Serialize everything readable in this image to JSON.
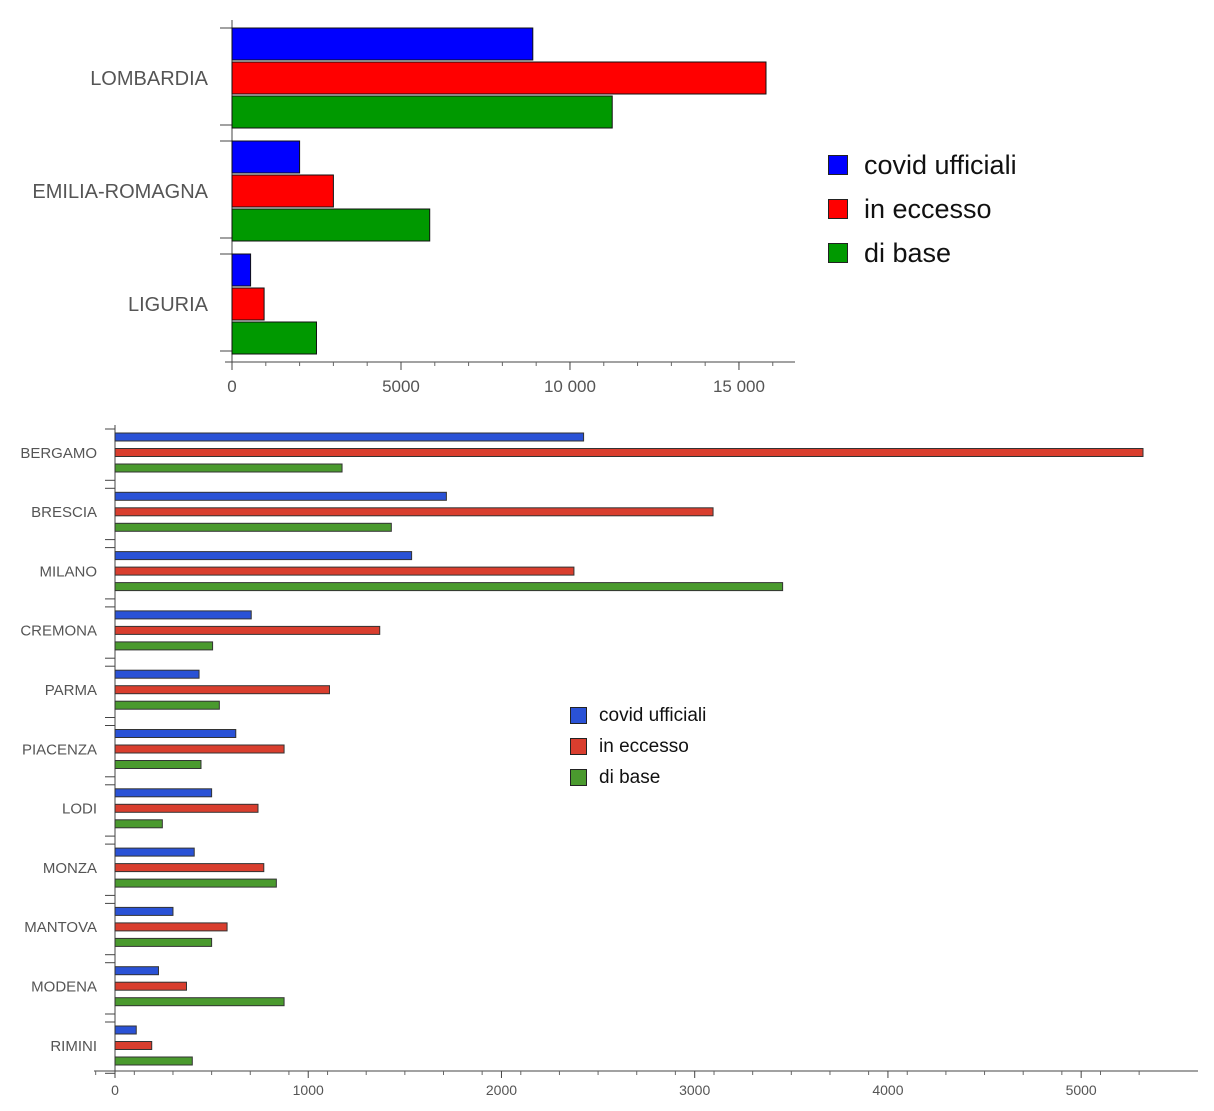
{
  "chart_data": [
    {
      "type": "bar",
      "orientation": "horizontal",
      "categories": [
        "LOMBARDIA",
        "EMILIA-ROMAGNA",
        "LIGURIA"
      ],
      "series": [
        {
          "name": "covid ufficiali",
          "color": "#0000ff",
          "values": [
            8900,
            2000,
            550
          ]
        },
        {
          "name": "in eccesso",
          "color": "#ff0000",
          "values": [
            15800,
            3000,
            950
          ]
        },
        {
          "name": "di base",
          "color": "#009900",
          "values": [
            11250,
            5850,
            2500
          ]
        }
      ],
      "xlim": [
        0,
        16700
      ],
      "xticks": [
        0,
        5000,
        10000,
        15000
      ],
      "xtick_labels": [
        "0",
        "5000",
        "10 000",
        "15 000"
      ],
      "legend": "right",
      "title": "",
      "xlabel": "",
      "ylabel": ""
    },
    {
      "type": "bar",
      "orientation": "horizontal",
      "categories": [
        "BERGAMO",
        "BRESCIA",
        "MILANO",
        "CREMONA",
        "PARMA",
        "PIACENZA",
        "LODI",
        "MONZA",
        "MANTOVA",
        "MODENA",
        "RIMINI"
      ],
      "series": [
        {
          "name": "covid ufficiali",
          "color": "#2a52d6",
          "values": [
            2425,
            1715,
            1535,
            705,
            435,
            625,
            500,
            410,
            300,
            225,
            110
          ]
        },
        {
          "name": "in eccesso",
          "color": "#d93e2e",
          "values": [
            5320,
            3095,
            2375,
            1370,
            1110,
            875,
            740,
            770,
            580,
            370,
            190
          ]
        },
        {
          "name": "di base",
          "color": "#4a9a2e",
          "values": [
            1175,
            1430,
            3455,
            505,
            540,
            445,
            245,
            835,
            500,
            875,
            400
          ]
        }
      ],
      "xlim": [
        -100,
        5600
      ],
      "xticks": [
        0,
        1000,
        2000,
        3000,
        4000,
        5000
      ],
      "xtick_labels": [
        "0",
        "1000",
        "2000",
        "3000",
        "4000",
        "5000"
      ],
      "legend": "center-right",
      "title": "",
      "xlabel": "",
      "ylabel": ""
    }
  ]
}
